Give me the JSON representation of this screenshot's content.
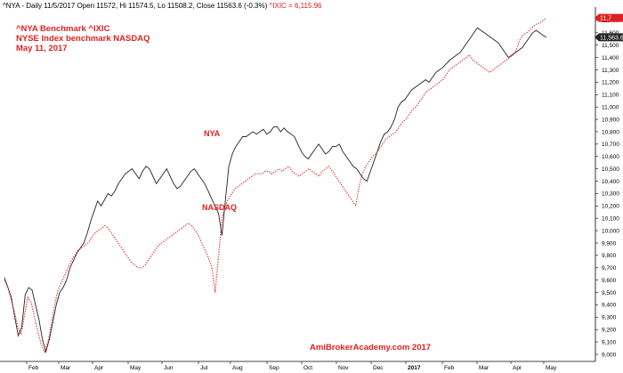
{
  "header": {
    "line": "^NYA - Daily 11/5/2017 Open 11572, Hi 11574.5, Lo 11508.2, Close 11563.6 (-0.3%)",
    "ixic": "^IXIC = 6,115.96"
  },
  "titles": [
    "^NYA Benchmark ^IXIC",
    "NYSE Index benchmark NASDAQ",
    "May 11, 2017"
  ],
  "credit": "AmiBrokerAcademy.com  2017",
  "last_tags": {
    "nya": "11,563.6",
    "ixic": "11,7"
  },
  "colors": {
    "nya": "#222222",
    "ixic": "#e02020",
    "axis": "#000000"
  },
  "chart_data": {
    "type": "line",
    "title": "^NYA Benchmark ^IXIC",
    "ylim": [
      9000,
      11800
    ],
    "y_ticks": [
      "9,000",
      "9,100",
      "9,200",
      "9,300",
      "9,400",
      "9,500",
      "9,600",
      "9,700",
      "9,800",
      "9,900",
      "10,000",
      "10,100",
      "10,200",
      "10,300",
      "10,400",
      "10,500",
      "10,600",
      "10,700",
      "10,800",
      "10,900",
      "11,000",
      "11,100",
      "11,200",
      "11,300",
      "11,400",
      "11,500",
      "11,600",
      "11,700"
    ],
    "x_ticks": [
      "Feb",
      "Mar",
      "Apr",
      "May",
      "Jun",
      "Jul",
      "Aug",
      "Sep",
      "Oct",
      "Nov",
      "Dec",
      "2017",
      "Feb",
      "Mar",
      "Apr",
      "May"
    ],
    "x_tick_bold": [
      "2017"
    ],
    "grid": false,
    "series": [
      {
        "name": "NYA",
        "style": "solid",
        "values": [
          9620,
          9540,
          9460,
          9300,
          9150,
          9220,
          9480,
          9540,
          9520,
          9400,
          9280,
          9120,
          9020,
          9120,
          9260,
          9400,
          9500,
          9540,
          9600,
          9700,
          9760,
          9820,
          9860,
          9900,
          9980,
          10080,
          10160,
          10240,
          10200,
          10250,
          10300,
          10280,
          10320,
          10380,
          10420,
          10460,
          10480,
          10500,
          10460,
          10420,
          10480,
          10520,
          10500,
          10440,
          10380,
          10420,
          10460,
          10500,
          10440,
          10380,
          10340,
          10360,
          10400,
          10440,
          10480,
          10500,
          10460,
          10420,
          10380,
          10320,
          10260,
          10200,
          10140,
          9960,
          10250,
          10520,
          10620,
          10680,
          10720,
          10760,
          10760,
          10780,
          10800,
          10780,
          10800,
          10820,
          10780,
          10800,
          10840,
          10840,
          10800,
          10830,
          10800,
          10780,
          10760,
          10700,
          10640,
          10600,
          10580,
          10620,
          10660,
          10700,
          10660,
          10620,
          10640,
          10680,
          10680,
          10700,
          10640,
          10600,
          10560,
          10520,
          10500,
          10460,
          10420,
          10400,
          10480,
          10560,
          10640,
          10720,
          10780,
          10800,
          10840,
          10900,
          11000,
          11040,
          11060,
          11100,
          11140,
          11160,
          11180,
          11200,
          11220,
          11200,
          11240,
          11280,
          11300,
          11320,
          11350,
          11380,
          11400,
          11420,
          11440,
          11480,
          11520,
          11560,
          11600,
          11640,
          11620,
          11600,
          11580,
          11560,
          11540,
          11520,
          11480,
          11440,
          11400,
          11420,
          11440,
          11460,
          11480,
          11520,
          11560,
          11600,
          11620,
          11600,
          11580,
          11563.6
        ],
        "last_value": 11563.6
      },
      {
        "name": "NASDAQ",
        "style": "dotted",
        "values": [
          9600,
          9540,
          9440,
          9340,
          9220,
          9160,
          9320,
          9460,
          9420,
          9300,
          9180,
          9080,
          9020,
          9100,
          9240,
          9400,
          9520,
          9580,
          9640,
          9700,
          9760,
          9800,
          9840,
          9860,
          9880,
          9900,
          9940,
          9980,
          10000,
          10020,
          10040,
          10020,
          9980,
          9940,
          9900,
          9860,
          9820,
          9780,
          9740,
          9720,
          9700,
          9700,
          9720,
          9760,
          9800,
          9840,
          9880,
          9900,
          9920,
          9940,
          9960,
          9980,
          10000,
          10020,
          10040,
          10060,
          10040,
          10000,
          9960,
          9900,
          9840,
          9780,
          9700,
          9500,
          9800,
          10100,
          10200,
          10260,
          10300,
          10340,
          10360,
          10380,
          10400,
          10420,
          10440,
          10460,
          10460,
          10460,
          10480,
          10480,
          10460,
          10480,
          10500,
          10480,
          10500,
          10520,
          10480,
          10460,
          10440,
          10460,
          10480,
          10500,
          10480,
          10460,
          10440,
          10480,
          10500,
          10520,
          10480,
          10440,
          10400,
          10360,
          10320,
          10280,
          10240,
          10200,
          10360,
          10460,
          10520,
          10560,
          10600,
          10620,
          10660,
          10700,
          10740,
          10760,
          10780,
          10800,
          10840,
          10880,
          10900,
          10940,
          10980,
          11000,
          11040,
          11080,
          11120,
          11140,
          11160,
          11180,
          11200,
          11220,
          11260,
          11300,
          11320,
          11340,
          11360,
          11380,
          11400,
          11420,
          11380,
          11360,
          11340,
          11320,
          11300,
          11280,
          11300,
          11320,
          11340,
          11360,
          11380,
          11400,
          11420,
          11460,
          11540,
          11580,
          11600,
          11620,
          11650,
          11670,
          11680,
          11700,
          11720
        ],
        "last_value": 11720
      }
    ],
    "annotations": [
      {
        "text": "NYA",
        "series": "NYA"
      },
      {
        "text": "NASDAQ",
        "series": "NASDAQ"
      }
    ]
  }
}
